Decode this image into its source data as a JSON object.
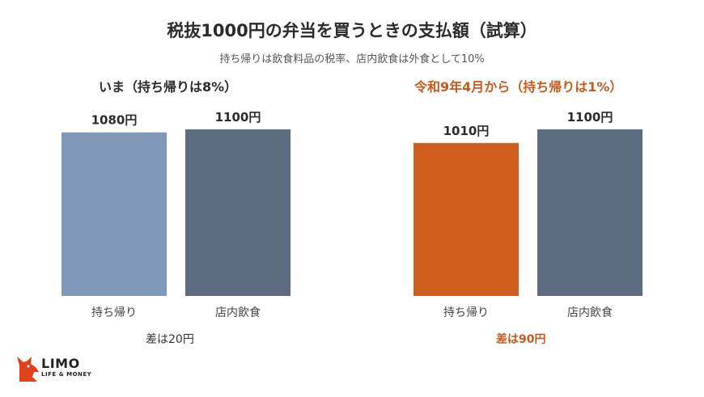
{
  "title": "税抜1000円の弁当を買うときの支払額（試算）",
  "subtitle": "持ち帰りは飲食料品の税率、店内飲食は外食として10%",
  "colors": {
    "takeout_now": "#7f98b8",
    "dine_in": "#5c6b80",
    "takeout_future": "#cf5d1b",
    "accent_text": "#c65a1e"
  },
  "chart_data": [
    {
      "type": "bar",
      "title": "いま（持ち帰りは8%）",
      "categories": [
        "持ち帰り",
        "店内飲食"
      ],
      "values": [
        1080,
        1100
      ],
      "value_labels": [
        "1080円",
        "1100円"
      ],
      "ylim": [
        0,
        1100
      ],
      "grid": false,
      "note": "差は20円"
    },
    {
      "type": "bar",
      "title": "令和9年4月から（持ち帰りは1%）",
      "categories": [
        "持ち帰り",
        "店内飲食"
      ],
      "values": [
        1010,
        1100
      ],
      "value_labels": [
        "1010円",
        "1100円"
      ],
      "ylim": [
        0,
        1100
      ],
      "grid": false,
      "note": "差は90円"
    }
  ],
  "logo": {
    "name": "LIMO",
    "tagline": "LIFE & MONEY"
  }
}
